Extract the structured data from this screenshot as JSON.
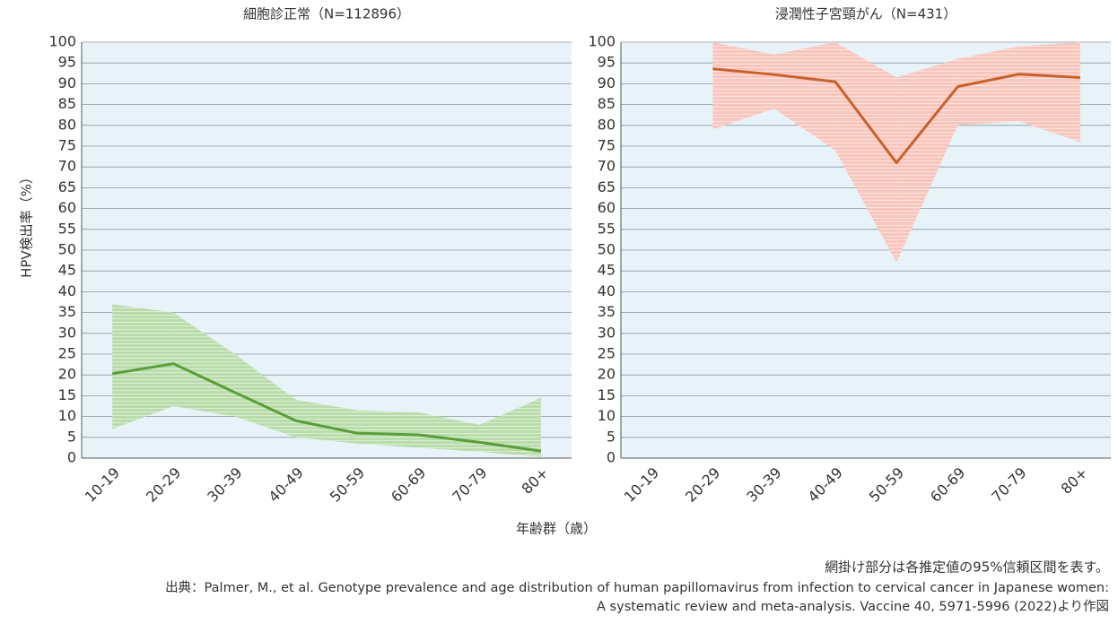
{
  "ylabel": "HPV検出率（%）",
  "xlabel": "年齢群（歳）",
  "note": "網掛け部分は各推定値の95%信頼区間を表す。",
  "source": [
    "出典：Palmer, M., et al. Genotype prevalence and age distribution of human papillomavirus from infection to cervical cancer in Japanese women:",
    "A systematic review and meta-analysis. Vaccine 40, 5971-5996 (2022)より作図"
  ],
  "chart_data": [
    {
      "type": "line",
      "title": "細胞診正常（N=112896）",
      "categories": [
        "10-19",
        "20-29",
        "30-39",
        "40-49",
        "50-59",
        "60-69",
        "70-79",
        "80+"
      ],
      "series": [
        {
          "color": "#5a9e3a",
          "band_color": "#b9ddaa",
          "values": [
            20.3,
            22.7,
            15.8,
            9,
            6,
            5.6,
            3.8,
            1.7
          ],
          "lower": [
            7,
            12.5,
            10,
            5,
            3.5,
            2.5,
            1.5,
            0.3
          ],
          "upper": [
            37,
            35,
            25,
            14,
            11.5,
            11,
            8,
            14.5
          ]
        }
      ],
      "ylim": [
        0,
        100
      ],
      "yticks": [
        0,
        5,
        10,
        15,
        20,
        25,
        30,
        35,
        40,
        45,
        50,
        55,
        60,
        65,
        70,
        75,
        80,
        85,
        90,
        95,
        100
      ],
      "grid": true
    },
    {
      "type": "line",
      "title": "浸潤性子宮頸がん（N=431）",
      "categories": [
        "10-19",
        "20-29",
        "30-39",
        "40-49",
        "50-59",
        "60-69",
        "70-79",
        "80+"
      ],
      "series": [
        {
          "color": "#c9622a",
          "band_color": "#f8c6bd",
          "values": [
            null,
            93.6,
            92.2,
            90.5,
            71,
            89.3,
            92.3,
            91.5
          ],
          "lower": [
            null,
            79,
            84,
            74,
            47,
            80,
            81,
            76
          ],
          "upper": [
            null,
            100,
            97,
            100,
            91.5,
            96,
            99,
            100
          ]
        }
      ],
      "ylim": [
        0,
        100
      ],
      "yticks": [
        0,
        5,
        10,
        15,
        20,
        25,
        30,
        35,
        40,
        45,
        50,
        55,
        60,
        65,
        70,
        75,
        80,
        85,
        90,
        95,
        100
      ],
      "grid": true
    }
  ]
}
